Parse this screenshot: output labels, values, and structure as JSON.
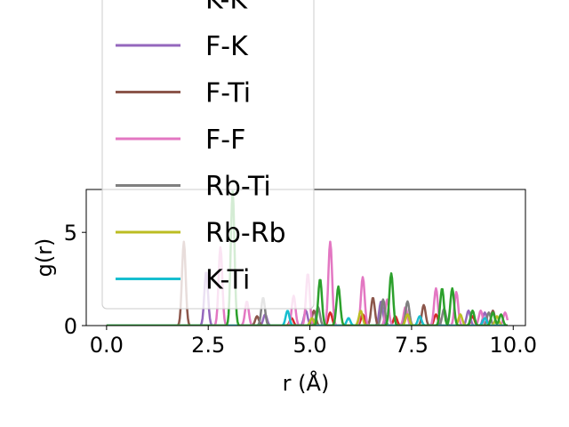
{
  "chart_data": {
    "type": "line",
    "xlabel": "r (Å)",
    "ylabel": "g(r)",
    "xlim": [
      -0.5,
      10.3
    ],
    "ylim": [
      0,
      7.3
    ],
    "xticks": [
      {
        "value": 0.0,
        "label": "0.0"
      },
      {
        "value": 2.5,
        "label": "2.5"
      },
      {
        "value": 5.0,
        "label": "5.0"
      },
      {
        "value": 7.5,
        "label": "7.5"
      },
      {
        "value": 10.0,
        "label": "10.0"
      }
    ],
    "yticks": [
      {
        "value": 0,
        "label": "0"
      },
      {
        "value": 5,
        "label": "5"
      }
    ],
    "grid": false,
    "legend_position": "upper-left",
    "series": [
      {
        "name": "K-K",
        "color": "#d62728",
        "peaks": [
          [
            4.55,
            0.4
          ],
          [
            5.5,
            0.7
          ],
          [
            6.3,
            0.6
          ],
          [
            7.1,
            0.5
          ],
          [
            8.1,
            0.6
          ],
          [
            9.0,
            0.5
          ]
        ]
      },
      {
        "name": "F-K",
        "color": "#9467bd",
        "peaks": [
          [
            2.45,
            2.9
          ],
          [
            3.9,
            0.6
          ],
          [
            4.9,
            0.8
          ],
          [
            6.75,
            1.3
          ],
          [
            8.9,
            0.8
          ],
          [
            9.3,
            0.7
          ]
        ]
      },
      {
        "name": "F-Ti",
        "color": "#8c564b",
        "peaks": [
          [
            1.9,
            4.5
          ],
          [
            3.7,
            0.5
          ],
          [
            5.1,
            0.8
          ],
          [
            6.55,
            1.5
          ],
          [
            7.8,
            1.1
          ],
          [
            9.5,
            0.8
          ]
        ]
      },
      {
        "name": "F-F",
        "color": "#e377c2",
        "peaks": [
          [
            2.8,
            4.2
          ],
          [
            3.45,
            1.3
          ],
          [
            4.6,
            1.6
          ],
          [
            4.95,
            2.8
          ],
          [
            5.5,
            4.5
          ],
          [
            6.3,
            2.6
          ],
          [
            6.9,
            1.4
          ],
          [
            7.35,
            1.0
          ],
          [
            8.1,
            2.0
          ],
          [
            8.6,
            1.8
          ],
          [
            9.2,
            0.8
          ],
          [
            9.8,
            0.7
          ]
        ]
      },
      {
        "name": "Rb-Ti",
        "color": "#7f7f7f",
        "peaks": [
          [
            3.85,
            1.5
          ],
          [
            5.2,
            1.0
          ],
          [
            6.8,
            1.4
          ],
          [
            7.4,
            1.3
          ],
          [
            8.3,
            0.9
          ],
          [
            9.4,
            0.7
          ]
        ]
      },
      {
        "name": "Rb-Rb",
        "color": "#bcbd22",
        "peaks": [
          [
            5.05,
            0.4
          ],
          [
            6.25,
            0.8
          ],
          [
            7.4,
            0.6
          ],
          [
            8.7,
            0.6
          ],
          [
            9.6,
            0.5
          ]
        ]
      },
      {
        "name": "K-Ti",
        "color": "#17becf",
        "peaks": [
          [
            4.45,
            0.8
          ],
          [
            5.95,
            0.4
          ],
          [
            7.7,
            0.5
          ],
          [
            9.3,
            0.4
          ]
        ]
      },
      {
        "name": "",
        "color": "#2ca02c",
        "peaks": [
          [
            3.1,
            7.2
          ],
          [
            5.25,
            2.5
          ],
          [
            5.7,
            2.1
          ],
          [
            7.0,
            2.8
          ],
          [
            8.25,
            2.0
          ],
          [
            8.5,
            2.0
          ],
          [
            9.0,
            0.8
          ],
          [
            9.5,
            0.7
          ],
          [
            9.7,
            0.6
          ]
        ]
      }
    ]
  }
}
